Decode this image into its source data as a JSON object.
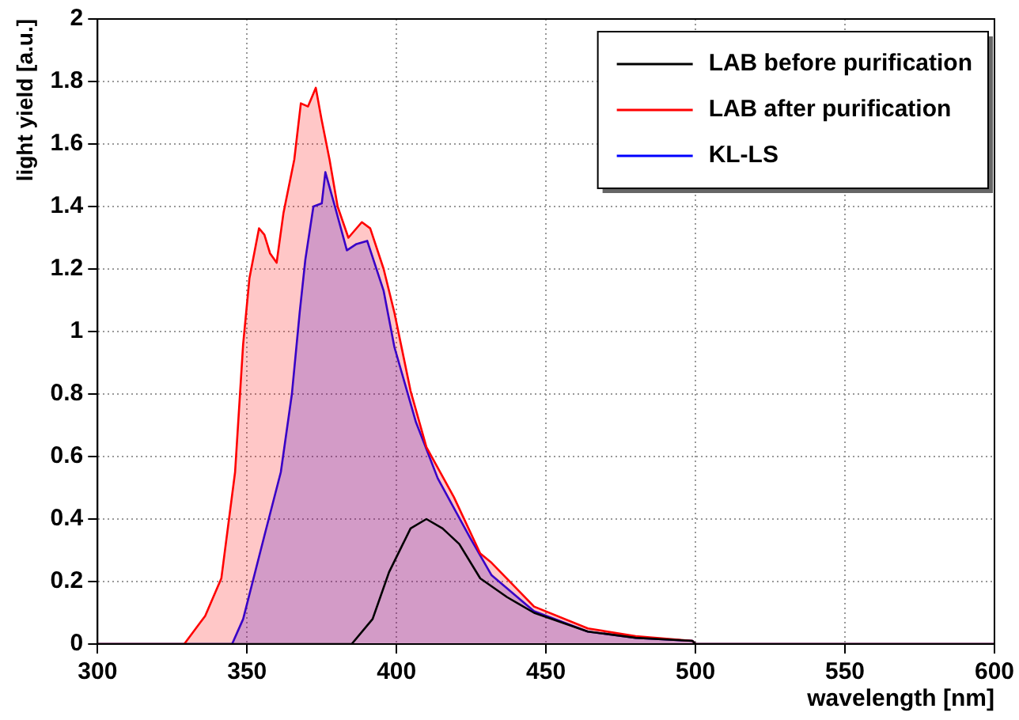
{
  "chart_data": {
    "type": "area",
    "xlabel": "wavelength [nm]",
    "ylabel": "light yield [a.u.]",
    "xlim": [
      300,
      600
    ],
    "xticks": [
      300,
      350,
      400,
      450,
      500,
      550,
      600
    ],
    "ylim": [
      0,
      2
    ],
    "yticks": [
      0,
      0.2,
      0.4,
      0.6,
      0.8,
      1,
      1.2,
      1.4,
      1.6,
      1.8,
      2
    ],
    "grid": true,
    "legend": "top right",
    "marker": "none",
    "line_style": "solid",
    "series": [
      {
        "name": "LAB before purification",
        "type": "line",
        "color": "#000000",
        "x": [
          300,
          385,
          392,
          397.5,
          404.7,
          410,
          415.4,
          421,
          428,
          437,
          446,
          464,
          480,
          499,
          500,
          600
        ],
        "values": [
          0,
          0,
          0.08,
          0.23,
          0.37,
          0.4,
          0.37,
          0.32,
          0.21,
          0.15,
          0.1,
          0.04,
          0.02,
          0.01,
          0,
          0
        ]
      },
      {
        "name": "LAB after purification",
        "color": "#ff0000",
        "x": [
          300,
          329,
          336,
          341.4,
          346,
          348.7,
          350.8,
          354,
          355.8,
          357.7,
          359.9,
          362.2,
          365.8,
          368,
          370.4,
          373,
          374.9,
          377.6,
          380.3,
          383.9,
          388.4,
          391.2,
          395.7,
          399.3,
          404.7,
          410,
          419.2,
          428,
          431.8,
          446,
          464,
          480,
          499,
          500,
          600
        ],
        "values": [
          0,
          0,
          0.09,
          0.21,
          0.55,
          0.96,
          1.17,
          1.33,
          1.31,
          1.25,
          1.22,
          1.38,
          1.55,
          1.73,
          1.72,
          1.78,
          1.68,
          1.55,
          1.4,
          1.3,
          1.35,
          1.33,
          1.2,
          1.06,
          0.81,
          0.63,
          0.47,
          0.29,
          0.26,
          0.12,
          0.05,
          0.025,
          0.01,
          0,
          0
        ]
      },
      {
        "name": "KL-LS",
        "color": "#0000ff",
        "x": [
          300,
          345,
          348.7,
          355.9,
          361.3,
          365,
          367.6,
          369.5,
          372.2,
          375,
          376.2,
          379.4,
          383.4,
          386.6,
          390.2,
          395.7,
          399.3,
          406.5,
          413.8,
          424.6,
          431.8,
          446,
          464,
          480,
          499,
          500,
          600
        ],
        "values": [
          0,
          0,
          0.08,
          0.35,
          0.55,
          0.8,
          1.06,
          1.23,
          1.4,
          1.41,
          1.51,
          1.4,
          1.26,
          1.28,
          1.29,
          1.13,
          0.95,
          0.71,
          0.53,
          0.34,
          0.22,
          0.105,
          0.04,
          0.02,
          0.01,
          0,
          0
        ]
      }
    ]
  }
}
